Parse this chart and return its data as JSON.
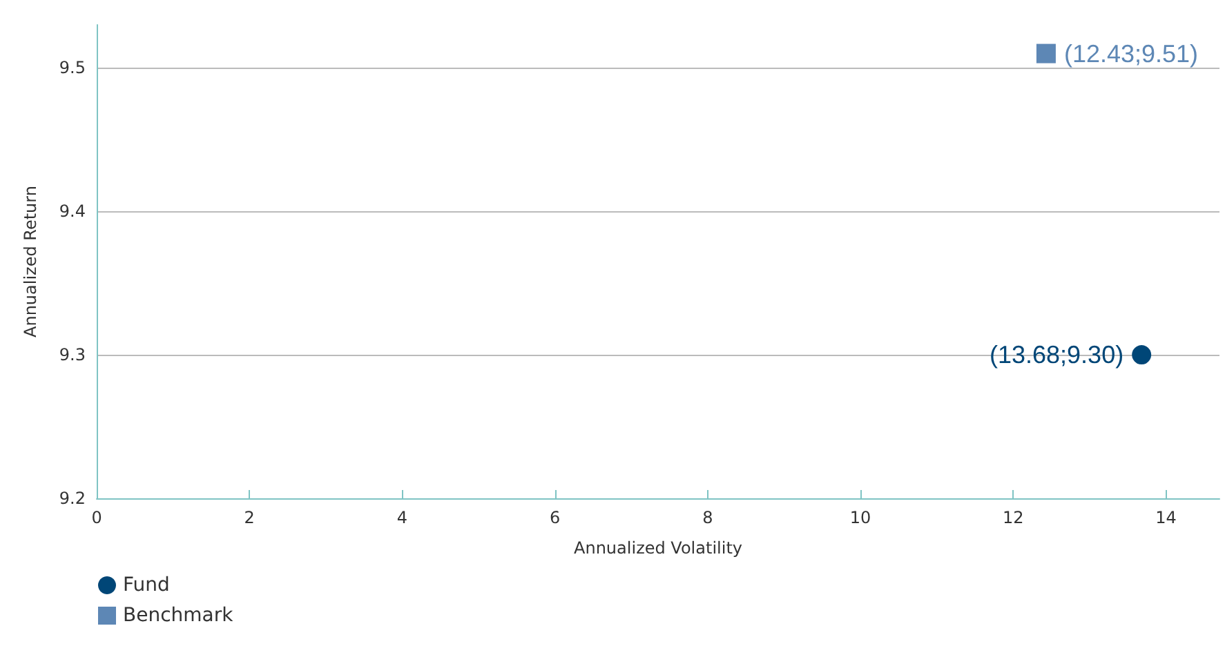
{
  "chart_data": {
    "type": "scatter",
    "xlabel": "Annualized Volatility",
    "ylabel": "Annualized Return",
    "xlim": [
      0,
      14.7
    ],
    "xticks": [
      0,
      2,
      4,
      6,
      8,
      10,
      12,
      14
    ],
    "ylim": [
      9.2,
      9.53
    ],
    "yticks": [
      9.2,
      9.3,
      9.4,
      9.5
    ],
    "grid": "y",
    "legend": "bottom left",
    "series": [
      {
        "name": "Fund",
        "color": "#004677",
        "marker": "circle",
        "x": [
          13.68
        ],
        "values": [
          9.3
        ],
        "value_labels": [
          "(13.68;9.30)"
        ]
      },
      {
        "name": "Benchmark",
        "color": "#5d87b5",
        "marker": "square",
        "x": [
          12.43
        ],
        "values": [
          9.51
        ],
        "value_labels": [
          "(12.43;9.51)"
        ]
      }
    ]
  }
}
